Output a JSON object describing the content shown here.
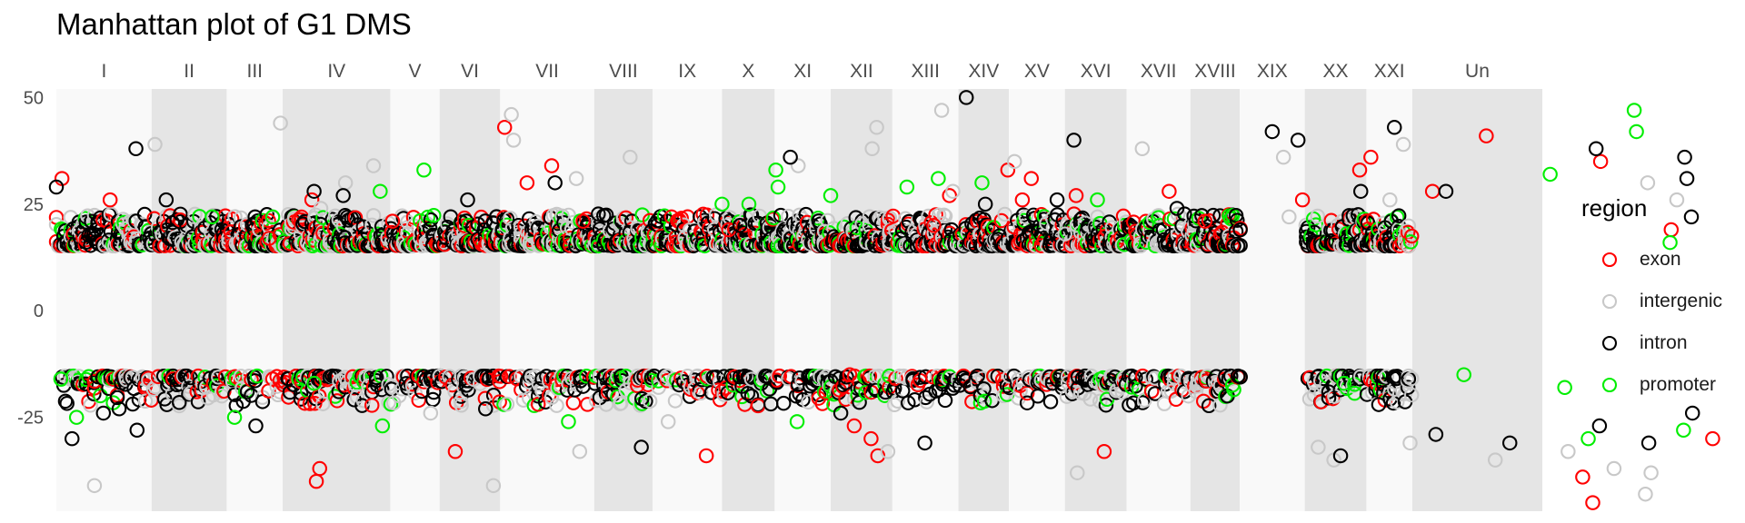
{
  "chart_data": {
    "type": "scatter",
    "title": "Manhattan plot of G1 DMS",
    "xlabel": "",
    "ylabel": "",
    "y_ticks": [
      -25,
      0,
      25,
      50
    ],
    "y_tick_labels": [
      "-25",
      "0",
      "25",
      "50"
    ],
    "ylim": [
      -47,
      52
    ],
    "grid": false,
    "legend_position": "right",
    "legend_title": "region",
    "chromosomes": [
      "I",
      "II",
      "III",
      "IV",
      "V",
      "VI",
      "VII",
      "VIII",
      "IX",
      "X",
      "XI",
      "XII",
      "XIII",
      "XIV",
      "XV",
      "XVI",
      "XVII",
      "XVIII",
      "XIX",
      "XX",
      "XXI",
      "Un"
    ],
    "chromosome_lengths": [
      85,
      67,
      50,
      96,
      44,
      54,
      84,
      52,
      62,
      47,
      50,
      55,
      59,
      45,
      50,
      55,
      57,
      44,
      58,
      55,
      41,
      116
    ],
    "chromosome_background_shading": [
      "light",
      "dark",
      "light",
      "dark",
      "light",
      "dark",
      "light",
      "dark",
      "light",
      "dark",
      "light",
      "dark",
      "light",
      "dark",
      "light",
      "dark",
      "light",
      "dark",
      "light",
      "dark",
      "light",
      "dark"
    ],
    "series": [
      {
        "name": "exon",
        "color": "#ff0000",
        "marker": "open-circle",
        "points": [
          [
            5,
            31
          ],
          [
            48,
            26
          ],
          [
            190,
            17
          ],
          [
            228,
            26
          ],
          [
            232,
            -40
          ],
          [
            235,
            -37
          ],
          [
            300,
            21
          ],
          [
            356,
            -33
          ],
          [
            400,
            43
          ],
          [
            420,
            30
          ],
          [
            442,
            34
          ],
          [
            470,
            21
          ],
          [
            580,
            -34
          ],
          [
            600,
            19
          ],
          [
            708,
            -15
          ],
          [
            712,
            -27
          ],
          [
            727,
            -30
          ],
          [
            733,
            -34
          ],
          [
            783,
            20
          ],
          [
            797,
            27
          ],
          [
            849,
            33
          ],
          [
            862,
            26
          ],
          [
            870,
            31
          ],
          [
            910,
            27
          ],
          [
            935,
            -33
          ],
          [
            993,
            28
          ],
          [
            1025,
            21
          ],
          [
            1112,
            26
          ],
          [
            1163,
            33
          ],
          [
            1173,
            36
          ],
          [
            1228,
            28
          ],
          [
            1276,
            41
          ],
          [
            1362,
            -39
          ],
          [
            1371,
            -45
          ],
          [
            1378,
            35
          ],
          [
            1441,
            19
          ],
          [
            1478,
            -30
          ]
        ]
      },
      {
        "name": "intergenic",
        "color": "#c8c8c8",
        "marker": "open-circle",
        "points": [
          [
            34,
            -41
          ],
          [
            88,
            39
          ],
          [
            200,
            44
          ],
          [
            236,
            24
          ],
          [
            258,
            30
          ],
          [
            283,
            34
          ],
          [
            334,
            -24
          ],
          [
            390,
            -41
          ],
          [
            406,
            46
          ],
          [
            408,
            40
          ],
          [
            464,
            31
          ],
          [
            467,
            -33
          ],
          [
            512,
            36
          ],
          [
            546,
            -26
          ],
          [
            662,
            34
          ],
          [
            728,
            38
          ],
          [
            732,
            43
          ],
          [
            742,
            -33
          ],
          [
            790,
            47
          ],
          [
            800,
            28
          ],
          [
            855,
            35
          ],
          [
            900,
            18
          ],
          [
            911,
            -38
          ],
          [
            969,
            38
          ],
          [
            1095,
            36
          ],
          [
            1100,
            22
          ],
          [
            1126,
            -32
          ],
          [
            1140,
            -35
          ],
          [
            1190,
            26
          ],
          [
            1202,
            39
          ],
          [
            1208,
            -31
          ],
          [
            1284,
            -35
          ],
          [
            1349,
            -33
          ],
          [
            1390,
            -37
          ],
          [
            1418,
            -43
          ],
          [
            1420,
            30
          ],
          [
            1423,
            -38
          ],
          [
            1446,
            26
          ]
        ]
      },
      {
        "name": "intron",
        "color": "#000000",
        "marker": "open-circle",
        "points": [
          [
            0,
            29
          ],
          [
            14,
            -30
          ],
          [
            42,
            -24
          ],
          [
            56,
            -23
          ],
          [
            71,
            38
          ],
          [
            72,
            -28
          ],
          [
            98,
            26
          ],
          [
            178,
            -27
          ],
          [
            230,
            28
          ],
          [
            256,
            27
          ],
          [
            367,
            26
          ],
          [
            383,
            -23
          ],
          [
            445,
            30
          ],
          [
            522,
            -32
          ],
          [
            610,
            20
          ],
          [
            655,
            36
          ],
          [
            700,
            -24
          ],
          [
            775,
            -31
          ],
          [
            812,
            50
          ],
          [
            829,
            25
          ],
          [
            893,
            26
          ],
          [
            908,
            40
          ],
          [
            1000,
            24
          ],
          [
            1085,
            42
          ],
          [
            1108,
            40
          ],
          [
            1146,
            -34
          ],
          [
            1164,
            28
          ],
          [
            1180,
            -22
          ],
          [
            1194,
            43
          ],
          [
            1231,
            -29
          ],
          [
            1240,
            28
          ],
          [
            1297,
            -31
          ],
          [
            1374,
            38
          ],
          [
            1377,
            -27
          ],
          [
            1421,
            -31
          ],
          [
            1453,
            36
          ],
          [
            1455,
            31
          ],
          [
            1459,
            22
          ],
          [
            1460,
            -24
          ]
        ]
      },
      {
        "name": "promoter",
        "color": "#00ee00",
        "marker": "open-circle",
        "points": [
          [
            4,
            -16
          ],
          [
            18,
            -25
          ],
          [
            139,
            22
          ],
          [
            159,
            -25
          ],
          [
            230,
            -17
          ],
          [
            289,
            28
          ],
          [
            291,
            -27
          ],
          [
            328,
            33
          ],
          [
            457,
            -26
          ],
          [
            594,
            25
          ],
          [
            618,
            25
          ],
          [
            642,
            33
          ],
          [
            644,
            29
          ],
          [
            661,
            -26
          ],
          [
            691,
            27
          ],
          [
            759,
            29
          ],
          [
            787,
            31
          ],
          [
            826,
            30
          ],
          [
            929,
            26
          ],
          [
            1149,
            -17
          ],
          [
            1256,
            -15
          ],
          [
            1333,
            32
          ],
          [
            1346,
            -18
          ],
          [
            1367,
            -30
          ],
          [
            1408,
            47
          ],
          [
            1410,
            42
          ],
          [
            1440,
            16
          ],
          [
            1452,
            -28
          ]
        ]
      }
    ],
    "note_points_x_units": "cumulative position along concatenated chromosomes"
  }
}
